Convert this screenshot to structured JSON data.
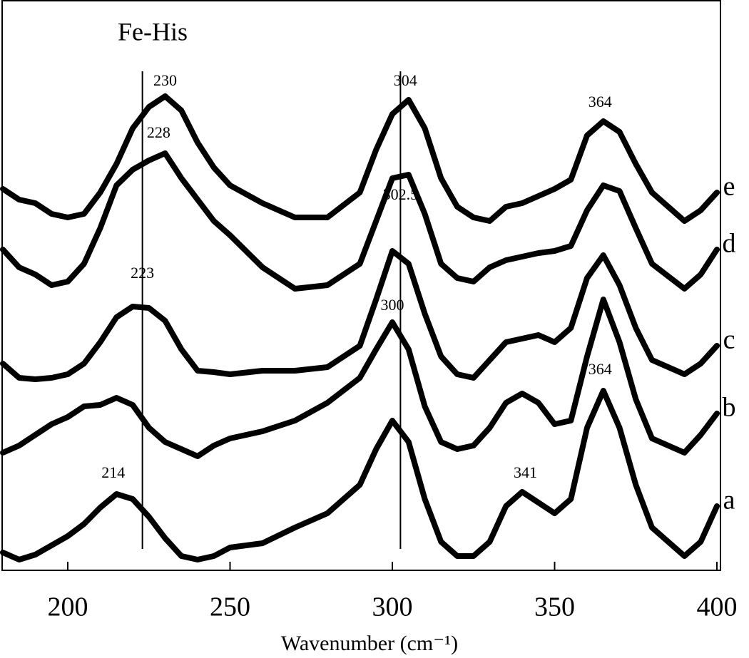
{
  "chart_data": {
    "type": "line",
    "title": "Fe-His",
    "x_label": "Wavenumber (cm⁻¹)",
    "xlim": [
      180,
      400
    ],
    "xticks": [
      200,
      250,
      300,
      350,
      400
    ],
    "ylim": [
      0,
      800
    ],
    "x": [
      180,
      185,
      190,
      195,
      200,
      205,
      210,
      215,
      220,
      225,
      230,
      235,
      240,
      245,
      250,
      260,
      270,
      280,
      290,
      295,
      300,
      305,
      310,
      315,
      320,
      325,
      330,
      335,
      340,
      345,
      350,
      355,
      360,
      365,
      370,
      375,
      380,
      390,
      395,
      400
    ],
    "series": [
      {
        "name": "a",
        "color": "#000000",
        "values": [
          25,
          15,
          22,
          35,
          48,
          65,
          88,
          107,
          100,
          75,
          45,
          20,
          15,
          20,
          32,
          38,
          60,
          80,
          120,
          170,
          210,
          180,
          100,
          40,
          20,
          20,
          40,
          90,
          110,
          95,
          80,
          100,
          200,
          252,
          200,
          120,
          60,
          20,
          40,
          90
        ]
      },
      {
        "name": "b",
        "color": "#000000",
        "values": [
          165,
          175,
          190,
          205,
          215,
          230,
          232,
          242,
          232,
          200,
          180,
          170,
          160,
          175,
          185,
          195,
          210,
          235,
          270,
          310,
          348,
          310,
          230,
          180,
          170,
          175,
          200,
          235,
          248,
          235,
          205,
          210,
          300,
          380,
          320,
          240,
          185,
          165,
          190,
          220
        ]
      },
      {
        "name": "c",
        "color": "#000000",
        "values": [
          290,
          270,
          268,
          270,
          275,
          290,
          320,
          355,
          370,
          368,
          350,
          310,
          280,
          278,
          275,
          280,
          280,
          285,
          315,
          380,
          448,
          430,
          360,
          300,
          275,
          270,
          295,
          320,
          325,
          330,
          320,
          340,
          410,
          442,
          400,
          340,
          295,
          275,
          290,
          315
        ]
      },
      {
        "name": "d",
        "color": "#000000",
        "values": [
          450,
          425,
          415,
          400,
          405,
          430,
          480,
          540,
          562,
          575,
          585,
          550,
          520,
          490,
          470,
          425,
          395,
          400,
          430,
          490,
          550,
          555,
          500,
          430,
          410,
          405,
          425,
          435,
          440,
          445,
          448,
          455,
          505,
          540,
          532,
          480,
          430,
          395,
          415,
          450
        ]
      },
      {
        "name": "e",
        "color": "#000000",
        "values": [
          535,
          520,
          515,
          500,
          495,
          500,
          530,
          570,
          620,
          650,
          665,
          645,
          600,
          565,
          540,
          515,
          495,
          495,
          530,
          590,
          640,
          660,
          620,
          550,
          510,
          495,
          490,
          510,
          515,
          525,
          535,
          548,
          610,
          630,
          615,
          570,
          530,
          490,
          505,
          530
        ]
      }
    ],
    "vlines": [
      223,
      302.5
    ],
    "annotations": [
      {
        "label": "230",
        "x": 230,
        "y": 685
      },
      {
        "label": "228",
        "x": 228,
        "y": 612
      },
      {
        "label": "223",
        "x": 223,
        "y": 415
      },
      {
        "label": "214",
        "x": 214,
        "y": 135
      },
      {
        "label": "304",
        "x": 304,
        "y": 685
      },
      {
        "label": "302.5",
        "x": 302.5,
        "y": 525
      },
      {
        "label": "300",
        "x": 300,
        "y": 370
      },
      {
        "label": "364",
        "x": 364,
        "y": 655
      },
      {
        "label": "364",
        "x": 364,
        "y": 280
      },
      {
        "label": "341",
        "x": 341,
        "y": 135
      }
    ]
  }
}
